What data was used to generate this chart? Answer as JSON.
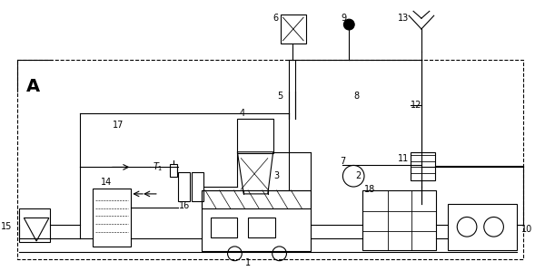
{
  "bg_color": "#ffffff",
  "lc": "#000000",
  "fig_width": 5.89,
  "fig_height": 2.99,
  "dpi": 100,
  "lw": 0.8
}
